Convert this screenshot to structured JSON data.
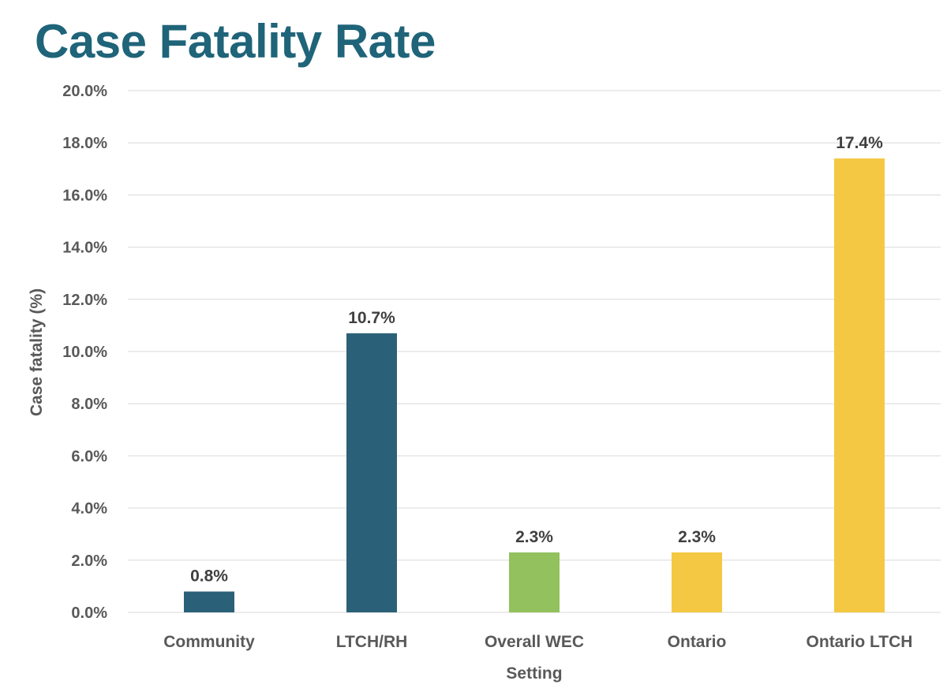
{
  "page": {
    "title": "Case Fatality Rate"
  },
  "chart_data": {
    "type": "bar",
    "title": "Case Fatality Rate",
    "xlabel": "Setting",
    "ylabel": "Case fatality (%)",
    "ylim": [
      0,
      20
    ],
    "ytick_step": 2,
    "ytick_labels": [
      "0.0%",
      "2.0%",
      "4.0%",
      "6.0%",
      "8.0%",
      "10.0%",
      "12.0%",
      "14.0%",
      "16.0%",
      "18.0%",
      "20.0%"
    ],
    "grid": true,
    "legend": "none",
    "categories": [
      "Community",
      "LTCH/RH",
      "Overall WEC",
      "Ontario",
      "Ontario LTCH"
    ],
    "values": [
      0.8,
      10.7,
      2.3,
      2.3,
      17.4
    ],
    "data_labels": [
      "0.8%",
      "10.7%",
      "2.3%",
      "2.3%",
      "17.4%"
    ],
    "colors": [
      "#2b6178",
      "#2b6178",
      "#92c15d",
      "#f4c842",
      "#f4c842"
    ]
  }
}
